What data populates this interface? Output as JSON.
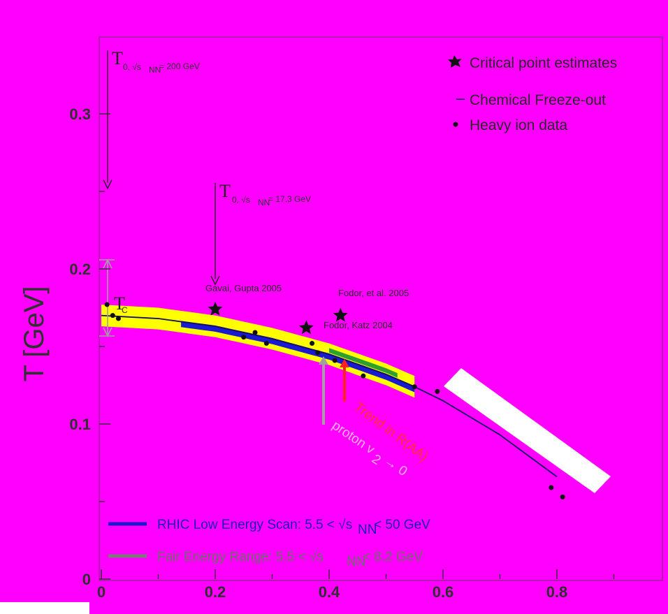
{
  "chart_data": {
    "type": "line",
    "title": "",
    "ylabel": "T [GeV]",
    "xlabel": "",
    "xlim": [
      0,
      0.95
    ],
    "ylim": [
      0,
      0.33
    ],
    "x_ticks": [
      "0",
      "0.2",
      "0.4",
      "0.6",
      "0.8"
    ],
    "x_tick_values": [
      0,
      0.2,
      0.4,
      0.6,
      0.8
    ],
    "y_ticks": [
      "0",
      "0.1",
      "0.2",
      "0.3"
    ],
    "y_tick_values": [
      0,
      0.1,
      0.2,
      0.3
    ],
    "legend": {
      "position": "top-right",
      "entries": [
        {
          "label": "Critical point estimates",
          "marker": "star"
        },
        {
          "label": "Chemical Freeze-out",
          "marker": "line"
        },
        {
          "label": "Heavy ion data",
          "marker": "dot"
        }
      ]
    },
    "series": [
      {
        "name": "Chemical Freeze-out",
        "x": [
          0.0,
          0.1,
          0.2,
          0.3,
          0.4,
          0.5,
          0.55,
          0.6,
          0.7,
          0.8
        ],
        "y": [
          0.17,
          0.168,
          0.163,
          0.155,
          0.145,
          0.132,
          0.124,
          0.115,
          0.093,
          0.066
        ]
      },
      {
        "name": "Heavy ion data",
        "x": [
          0.01,
          0.02,
          0.03,
          0.25,
          0.27,
          0.29,
          0.37,
          0.38,
          0.41,
          0.46,
          0.55,
          0.59,
          0.79,
          0.81
        ],
        "y": [
          0.177,
          0.17,
          0.168,
          0.156,
          0.159,
          0.152,
          0.152,
          0.146,
          0.141,
          0.131,
          0.124,
          0.121,
          0.059,
          0.053
        ]
      },
      {
        "name": "Critical point estimates",
        "x": [
          0.2,
          0.36,
          0.42
        ],
        "y": [
          0.174,
          0.162,
          0.17
        ]
      }
    ],
    "bands": [
      {
        "name": "yellow-band",
        "x": [
          0.0,
          0.55
        ],
        "y_low_start": 0.163,
        "y_high_start": 0.177,
        "color": "#ffff00"
      },
      {
        "name": "blue-band",
        "x": [
          0.14,
          0.55
        ],
        "color": "#1a1ad0"
      },
      {
        "name": "green-band",
        "x": [
          0.4,
          0.52
        ],
        "color": "#2fa02f"
      }
    ],
    "annotations": {
      "t0_top": {
        "main": "T",
        "sub": "0, √s",
        "sub2": "NN",
        "rest": "= 200 GeV",
        "x": 0.0,
        "y_start": 0.33,
        "y_end": 0.252
      },
      "t0_mid": {
        "main": "T",
        "sub": "0, √s",
        "sub2": "NN",
        "rest": "= 17.3 GeV",
        "x": 0.2,
        "y_start": 0.25,
        "y_end": 0.19
      },
      "gavai": "Gavai, Gupta 2005",
      "fodor1": "Fodor, et al. 2005",
      "fodor2": "Fodor, Katz 2004",
      "tc": "T",
      "tc_sub": "C",
      "red_text": "Trend in R(AA)",
      "pink_text_main": "proton v",
      "pink_text_sub": "2",
      "pink_text_rest": "→ 0",
      "blue_legend_main": "RHIC Low Energy Scan: 5.5 < √s",
      "blue_legend_sub": "NN",
      "blue_legend_rest": "< 50 GeV",
      "grey_legend_main": "Fair Energy Range: 5.5 < √s",
      "grey_legend_sub": "NN",
      "grey_legend_rest": "< 8.2 GeV"
    },
    "colors": {
      "background": "#ff00ff",
      "band_yellow": "#ffff00",
      "band_blue": "#1a1ad0",
      "band_green": "#2fa02f",
      "line": "#101060",
      "arrow_red": "#ff2020",
      "arrow_grey": "#a0a0a0"
    }
  }
}
